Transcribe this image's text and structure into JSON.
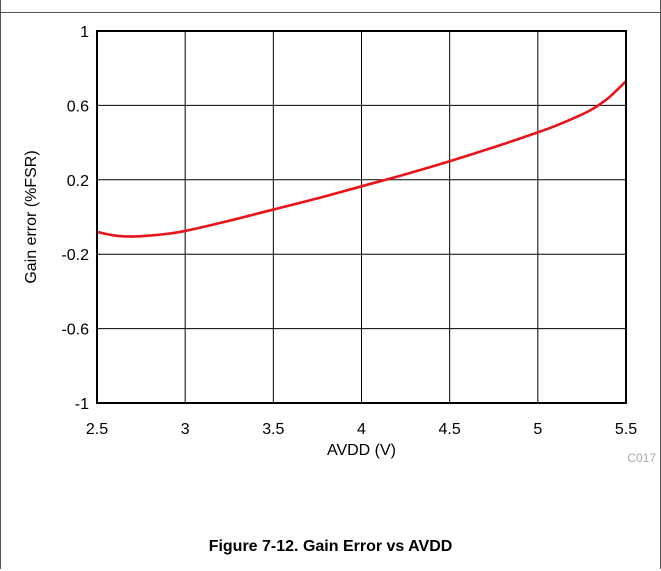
{
  "chart_data": {
    "type": "line",
    "title": "",
    "xlabel": "AVDD (V)",
    "ylabel": "Gain error (%FSR)",
    "xlim": [
      2.5,
      5.5
    ],
    "ylim": [
      -1,
      1
    ],
    "x_ticks": [
      "2.5",
      "3",
      "3.5",
      "4",
      "4.5",
      "5",
      "5.5"
    ],
    "y_ticks": [
      "1",
      "0.6",
      "0.2",
      "-0.2",
      "-0.6",
      "-1"
    ],
    "grid": true,
    "series": [
      {
        "color": "#e8141a",
        "x": [
          2.5,
          2.6,
          2.7,
          2.8,
          2.9,
          3.0,
          3.25,
          3.5,
          3.75,
          4.0,
          4.25,
          4.5,
          4.75,
          5.0,
          5.1,
          5.2,
          5.3,
          5.4,
          5.5
        ],
        "y": [
          -0.08,
          -0.1,
          -0.105,
          -0.1,
          -0.09,
          -0.075,
          -0.02,
          0.04,
          0.1,
          0.165,
          0.23,
          0.3,
          0.375,
          0.455,
          0.49,
          0.53,
          0.575,
          0.64,
          0.73
        ]
      }
    ],
    "figure_code": "C017"
  },
  "caption": "Figure 7-12. Gain Error vs AVDD"
}
